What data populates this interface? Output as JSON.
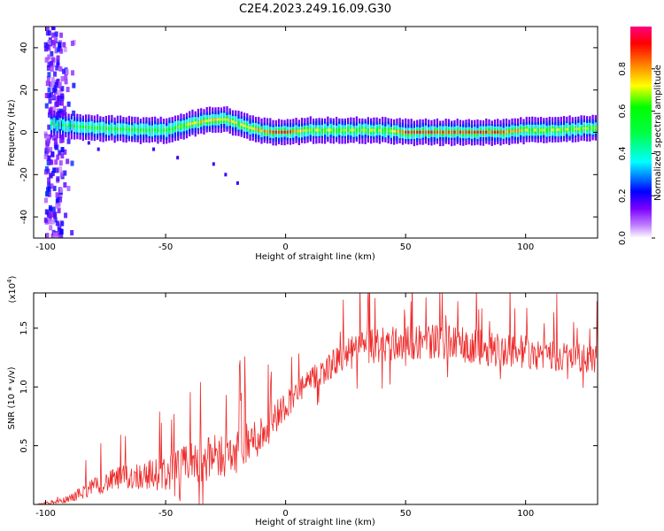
{
  "title": "C2E4.2023.249.16.09.G30",
  "chart_data": [
    {
      "type": "heatmap",
      "xlabel": "Height of straight line (km)",
      "ylabel": "Frequency (Hz)",
      "xlim": [
        -105,
        130
      ],
      "ylim": [
        -50,
        50
      ],
      "xticks": [
        -100,
        -50,
        0,
        50,
        100
      ],
      "xtick_labels": [
        "-100",
        "-50",
        "0",
        "50",
        "100"
      ],
      "yticks": [
        -40,
        -20,
        0,
        20,
        40
      ],
      "ytick_labels": [
        "-40",
        "-20",
        "0",
        "20",
        "40"
      ],
      "ridge": {
        "x": [
          -98,
          -90,
          -80,
          -70,
          -60,
          -50,
          -40,
          -30,
          -25,
          -20,
          -15,
          -10,
          -5,
          0,
          5,
          10,
          20,
          30,
          40,
          50,
          60,
          70,
          80,
          90,
          100,
          110,
          120,
          130
        ],
        "freq": [
          4,
          3,
          2,
          1.5,
          1,
          1,
          4,
          6,
          6,
          4,
          2,
          0.5,
          0,
          0,
          0.5,
          1,
          1,
          1,
          0.8,
          0,
          0,
          0,
          0,
          0,
          1,
          1,
          1.5,
          2
        ],
        "amplitude": [
          0.55,
          0.55,
          0.6,
          0.62,
          0.6,
          0.6,
          0.75,
          0.8,
          0.8,
          0.75,
          0.75,
          0.85,
          0.95,
          0.95,
          0.85,
          0.7,
          0.7,
          0.68,
          0.7,
          0.95,
          0.95,
          0.95,
          0.95,
          0.9,
          0.75,
          0.72,
          0.7,
          0.7
        ]
      },
      "colorbar": {
        "label": "Normalized spectral amplitude",
        "range": [
          0,
          1
        ],
        "ticks": [
          0.0,
          0.2,
          0.4,
          0.6,
          0.8
        ],
        "tick_labels": [
          "0.0",
          "0.2",
          "0.4",
          "0.6",
          "0.8"
        ],
        "colors": [
          "#ffffff",
          "#7b00ff",
          "#0000ff",
          "#00ffff",
          "#00ff00",
          "#ffff00",
          "#ff8000",
          "#ff0000",
          "#ff0080"
        ]
      }
    },
    {
      "type": "line",
      "xlabel": "Height of straight line (km)",
      "ylabel": "SNR (10 * v/v)",
      "multiplier_label": "(x10",
      "multiplier_exp": "4",
      "multiplier_close": ")",
      "xlim": [
        -105,
        130
      ],
      "ylim": [
        0,
        18000
      ],
      "xticks": [
        -100,
        -50,
        0,
        50,
        100
      ],
      "xtick_labels": [
        "-100",
        "-50",
        "0",
        "50",
        "100"
      ],
      "yticks": [
        5000,
        10000,
        15000
      ],
      "ytick_labels": [
        "0.5",
        "1.0",
        "1.5"
      ],
      "series": [
        {
          "color": "#ee2a2a",
          "x": [
            -105,
            -95,
            -90,
            -80,
            -70,
            -60,
            -50,
            -40,
            -30,
            -20,
            -10,
            0,
            10,
            20,
            30,
            40,
            50,
            60,
            70,
            80,
            90,
            100,
            110,
            120,
            130
          ],
          "mean": [
            0,
            200,
            500,
            1500,
            2200,
            2500,
            2600,
            3500,
            4000,
            4500,
            6000,
            8500,
            10500,
            12000,
            13200,
            13600,
            13800,
            13900,
            13700,
            13400,
            13200,
            13000,
            12800,
            12500,
            12300
          ],
          "spread": [
            100,
            300,
            700,
            1500,
            2000,
            2500,
            3000,
            3500,
            3800,
            3800,
            3500,
            2500,
            2000,
            2500,
            3000,
            3200,
            3200,
            3000,
            3000,
            3000,
            3000,
            3000,
            2800,
            2500,
            2500
          ]
        }
      ]
    }
  ]
}
